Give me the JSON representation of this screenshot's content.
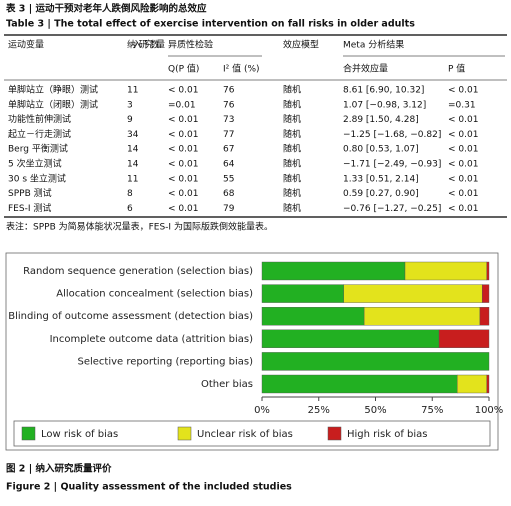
{
  "header": {
    "title_cn": "表 3 | 运动干预对老年人跌倒风险影响的总效应",
    "title_en": "Table 3 | The total effect of exercise intervention on fall risks in older adults"
  },
  "table": {
    "columns": [
      "运动变量",
      "纳入研究数量",
      "异质性检验",
      "效应模型",
      "Meta 分析结果"
    ],
    "subcolumns": [
      "Q(P 值)",
      "I² 值 (%)",
      "合并效应量",
      "P 值"
    ],
    "rows": [
      [
        "单脚站立（睁眼）测试",
        "11",
        "< 0.01",
        "76",
        "随机",
        "8.61 [6.90, 10.32]",
        "< 0.01"
      ],
      [
        "单脚站立（闭眼）测试",
        "3",
        "=0.01",
        "76",
        "随机",
        "1.07 [−0.98, 3.12]",
        "=0.31"
      ],
      [
        "功能性前伸测试",
        "9",
        "< 0.01",
        "73",
        "随机",
        "2.89 [1.50, 4.28]",
        "< 0.01"
      ],
      [
        "起立－行走测试",
        "34",
        "< 0.01",
        "77",
        "随机",
        "−1.25 [−1.68, −0.82]",
        "< 0.01"
      ],
      [
        "Berg 平衡测试",
        "14",
        "< 0.01",
        "67",
        "随机",
        "0.80 [0.53, 1.07]",
        "< 0.01"
      ],
      [
        "5 次坐立测试",
        "14",
        "< 0.01",
        "64",
        "随机",
        "−1.71 [−2.49, −0.93]",
        "< 0.01"
      ],
      [
        "30 s 坐立测试",
        "11",
        "< 0.01",
        "55",
        "随机",
        "1.33 [0.51, 2.14]",
        "< 0.01"
      ],
      [
        "SPPB 测试",
        "8",
        "< 0.01",
        "68",
        "随机",
        "0.59 [0.27, 0.90]",
        "< 0.01"
      ],
      [
        "FES-I 测试",
        "6",
        "< 0.01",
        "79",
        "随机",
        "−0.76 [−1.27, −0.25]",
        "< 0.01"
      ]
    ],
    "note": "表注：SPPB 为简易体能状况量表，FES-I 为国际版跌倒效能量表。"
  },
  "chart_data": {
    "type": "stacked-bar-horizontal",
    "categories": [
      "Random sequence generation (selection bias)",
      "Allocation concealment (selection bias)",
      "Blinding of outcome assessment (detection bias)",
      "Incomplete outcome data (attrition bias)",
      "Selective reporting (reporting bias)",
      "Other bias"
    ],
    "series": [
      {
        "name": "Low risk of bias",
        "color": "#22b022",
        "values": [
          63,
          36,
          45,
          78,
          100,
          86
        ]
      },
      {
        "name": "Unclear risk of bias",
        "color": "#e3e31c",
        "values": [
          36,
          61,
          51,
          0,
          0,
          13
        ]
      },
      {
        "name": "High risk of bias",
        "color": "#c81e1e",
        "values": [
          1,
          3,
          4,
          22,
          0,
          1
        ]
      }
    ],
    "xlim": [
      0,
      100
    ],
    "xticks": [
      {
        "value": 0,
        "label": "0%"
      },
      {
        "value": 25,
        "label": "25%"
      },
      {
        "value": 50,
        "label": "50%"
      },
      {
        "value": 75,
        "label": "75%"
      },
      {
        "value": 100,
        "label": "100%"
      }
    ]
  },
  "caption": {
    "cn": "图 2 | 纳入研究质量评价",
    "en": "Figure 2 | Quality assessment of the included studies"
  }
}
